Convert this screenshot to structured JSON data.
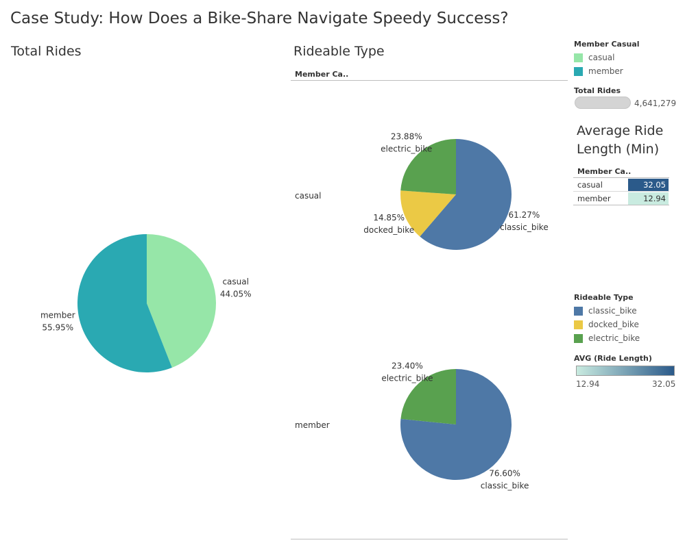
{
  "dashboard": {
    "title": "Case Study: How Does a Bike-Share Navigate Speedy Success?"
  },
  "colors": {
    "casual": "#96e6a8",
    "member": "#2aa9b2",
    "classic_bike": "#4e78a6",
    "docked_bike": "#ebc945",
    "electric_bike": "#59a14f",
    "avg_low": "#c9ebe0",
    "avg_high": "#2b5a8a"
  },
  "total_rides_panel": {
    "title": "Total Rides"
  },
  "rideable_panel": {
    "title": "Rideable Type",
    "column_header": "Member Ca..",
    "row_labels": [
      "casual",
      "member"
    ]
  },
  "legends": {
    "member_casual": {
      "title": "Member Casual",
      "items": [
        "casual",
        "member"
      ]
    },
    "total_rides": {
      "title": "Total Rides",
      "value": "4,641,279"
    },
    "rideable_type": {
      "title": "Rideable Type",
      "items": [
        "classic_bike",
        "docked_bike",
        "electric_bike"
      ]
    },
    "avg_ride_length": {
      "title": "AVG (Ride Length)",
      "min_label": "12.94",
      "max_label": "32.05"
    }
  },
  "avg_table": {
    "title_line1": "Average Ride",
    "title_line2": "Length (Min)",
    "column_header": "Member Ca..",
    "rows": [
      {
        "label": "casual",
        "value": "32.05"
      },
      {
        "label": "member",
        "value": "12.94"
      }
    ]
  },
  "chart_data": [
    {
      "type": "pie",
      "title": "Total Rides",
      "categories": [
        "casual",
        "member"
      ],
      "values": [
        44.05,
        55.95
      ],
      "labels": [
        "44.05%",
        "55.95%"
      ],
      "unit": "%"
    },
    {
      "type": "pie",
      "title": "Rideable Type",
      "facet": "casual",
      "categories": [
        "classic_bike",
        "docked_bike",
        "electric_bike"
      ],
      "values": [
        61.27,
        14.85,
        23.88
      ],
      "labels": [
        "61.27%",
        "14.85%",
        "23.88%"
      ],
      "unit": "%"
    },
    {
      "type": "pie",
      "title": "Rideable Type",
      "facet": "member",
      "categories": [
        "classic_bike",
        "electric_bike"
      ],
      "values": [
        76.6,
        23.4
      ],
      "labels": [
        "76.60%",
        "23.40%"
      ],
      "unit": "%"
    },
    {
      "type": "table",
      "title": "Average Ride Length (Min)",
      "categories": [
        "casual",
        "member"
      ],
      "values": [
        32.05,
        12.94
      ],
      "color_range": [
        12.94,
        32.05
      ]
    }
  ]
}
